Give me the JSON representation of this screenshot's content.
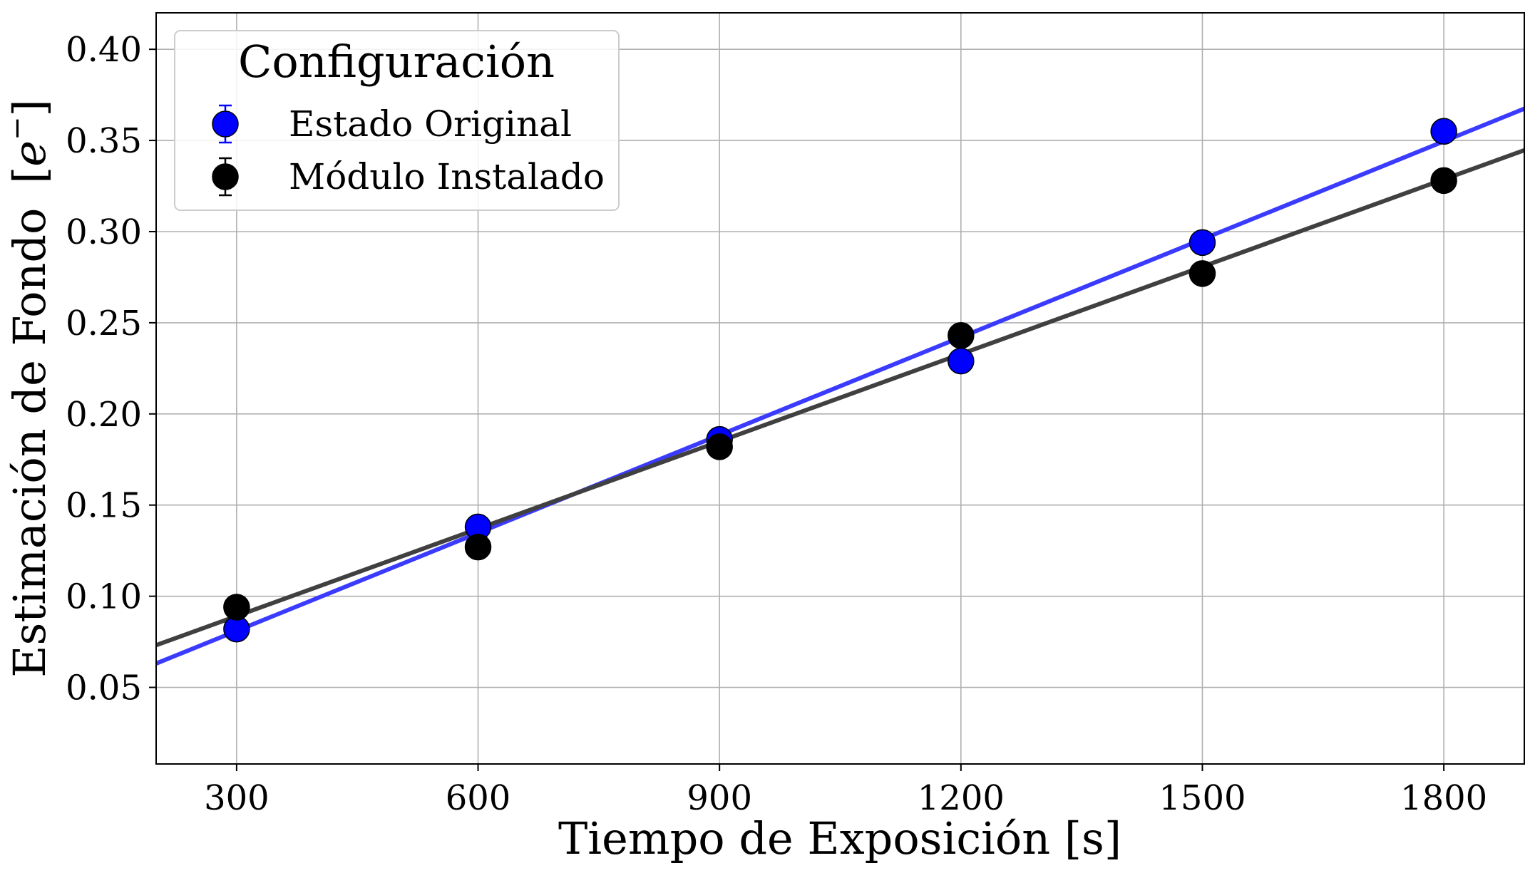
{
  "chart_data": {
    "type": "scatter",
    "title": "",
    "xlabel": "Tiempo de Exposición [s]",
    "ylabel": "Estimación de Fondo",
    "ylabel_unit_open": "[",
    "ylabel_unit_symbol": "e",
    "ylabel_unit_sup": "−",
    "ylabel_unit_close": "]",
    "xlim": [
      200,
      1900
    ],
    "ylim": [
      0.008,
      0.42
    ],
    "xticks": [
      300,
      600,
      900,
      1200,
      1500,
      1800
    ],
    "xtick_labels": [
      "300",
      "600",
      "900",
      "1200",
      "1500",
      "1800"
    ],
    "yticks": [
      0.05,
      0.1,
      0.15,
      0.2,
      0.25,
      0.3,
      0.35,
      0.4
    ],
    "ytick_labels": [
      "0.05",
      "0.10",
      "0.15",
      "0.20",
      "0.25",
      "0.30",
      "0.35",
      "0.40"
    ],
    "grid": true,
    "legend": {
      "title": "Configuración",
      "position": "top-left"
    },
    "series": [
      {
        "name": "Estado Original",
        "color": "#0000ff",
        "fit_color": "#3b3bff",
        "x": [
          300,
          600,
          900,
          1200,
          1500,
          1800
        ],
        "y": [
          0.082,
          0.138,
          0.186,
          0.229,
          0.294,
          0.355
        ],
        "fit": {
          "slope": 0.000179,
          "intercept": 0.0273
        }
      },
      {
        "name": "Módulo Instalado",
        "color": "#000000",
        "fit_color": "#404040",
        "x": [
          300,
          600,
          900,
          1200,
          1500,
          1800
        ],
        "y": [
          0.094,
          0.127,
          0.182,
          0.243,
          0.277,
          0.328
        ],
        "fit": {
          "slope": 0.0001597,
          "intercept": 0.0412
        }
      }
    ]
  }
}
